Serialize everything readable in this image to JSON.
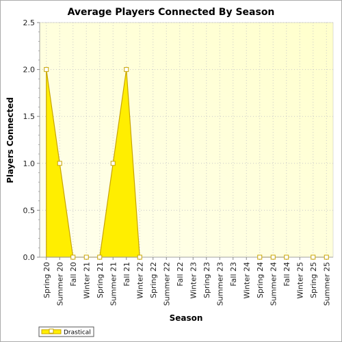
{
  "chart_data": {
    "type": "area",
    "title": "Average Players Connected By Season",
    "xlabel": "Season",
    "ylabel": "Players Connected",
    "ylim": [
      0,
      2.5
    ],
    "y_ticks": [
      "0.0",
      "0.5",
      "1.0",
      "1.5",
      "2.0",
      "2.5"
    ],
    "grid": true,
    "legend_position": "bottom-left",
    "categories": [
      "Spring 20",
      "Summer 20",
      "Fall 20",
      "Winter 21",
      "Spring 21",
      "Summer 21",
      "Fall 21",
      "Winter 22",
      "Spring 22",
      "Summer 22",
      "Fall 22",
      "Winter 23",
      "Spring 23",
      "Summer 23",
      "Fall 23",
      "Winter 24",
      "Spring 24",
      "Summer 24",
      "Fall 24",
      "Winter 25",
      "Spring 25",
      "Summer 25"
    ],
    "series": [
      {
        "name": "Drastical",
        "values": [
          2.0,
          1.0,
          0,
          0,
          0,
          1.0,
          2.0,
          0,
          null,
          null,
          null,
          null,
          null,
          null,
          null,
          null,
          0,
          0,
          0,
          null,
          0,
          0
        ],
        "color": "#ffee00",
        "line_color": "#c8a400"
      }
    ],
    "background_gradient": [
      "#ffffee",
      "#ffffcc"
    ]
  }
}
